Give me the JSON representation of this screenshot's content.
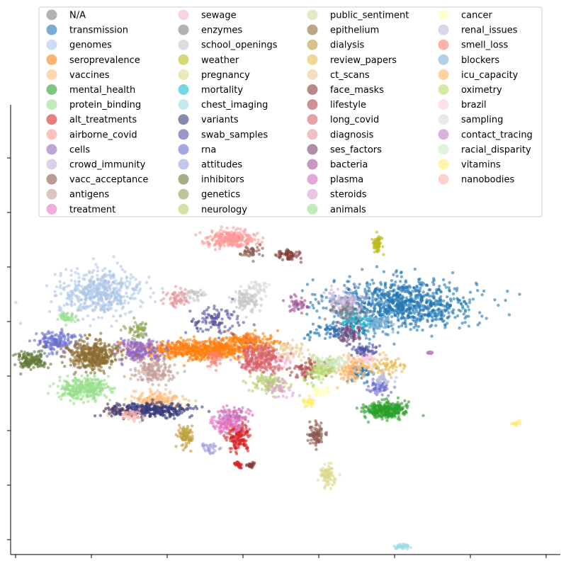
{
  "chart_data": {
    "type": "scatter",
    "title": "",
    "xlabel": "",
    "ylabel": "",
    "x_tick_labels_visible": false,
    "y_tick_labels_visible": false,
    "grid": false,
    "legend_position": "top",
    "legend_columns": 4,
    "marker_alpha": 0.6,
    "series": [
      {
        "name": "N/A",
        "color": "#7f7f7f",
        "clusters": []
      },
      {
        "name": "transmission",
        "color": "#1f77b4",
        "clusters": [
          [
            5.6,
            4.7,
            1.8,
            0.9,
            900
          ],
          [
            4.1,
            3.7,
            0.8,
            0.4,
            120
          ],
          [
            4.6,
            2.2,
            0.3,
            0.3,
            60
          ]
        ]
      },
      {
        "name": "genomes",
        "color": "#aec7e8",
        "clusters": [
          [
            -1.8,
            5.1,
            1.0,
            0.8,
            500
          ]
        ]
      },
      {
        "name": "seroprevalence",
        "color": "#ff7f0e",
        "clusters": [
          [
            0.6,
            3.0,
            1.4,
            0.35,
            600
          ],
          [
            1.8,
            3.3,
            0.8,
            0.3,
            200
          ]
        ]
      },
      {
        "name": "vaccines",
        "color": "#ffbb78",
        "clusters": [
          [
            -0.4,
            1.2,
            0.6,
            0.3,
            150
          ],
          [
            4.5,
            2.5,
            0.6,
            0.4,
            120
          ],
          [
            -1.4,
            0.8,
            0.3,
            0.2,
            50
          ]
        ]
      },
      {
        "name": "mental_health",
        "color": "#2ca02c",
        "clusters": [
          [
            5.2,
            0.8,
            0.5,
            0.3,
            300
          ]
        ]
      },
      {
        "name": "protein_binding",
        "color": "#98df8a",
        "clusters": [
          [
            -2.2,
            1.6,
            0.6,
            0.4,
            300
          ]
        ]
      },
      {
        "name": "alt_treatments",
        "color": "#d62728",
        "clusters": [
          [
            1.6,
            -0.2,
            0.3,
            0.5,
            150
          ],
          [
            1.6,
            -1.2,
            0.1,
            0.1,
            30
          ]
        ]
      },
      {
        "name": "airborne_covid",
        "color": "#ff9896",
        "clusters": [
          [
            1.4,
            7.1,
            0.6,
            0.3,
            250
          ]
        ]
      },
      {
        "name": "cells",
        "color": "#9467bd",
        "clusters": [
          [
            -0.8,
            3.0,
            0.6,
            0.4,
            200
          ]
        ]
      },
      {
        "name": "crowd_immunity",
        "color": "#c5b0d5",
        "clusters": [
          [
            4.2,
            4.8,
            0.5,
            0.4,
            120
          ]
        ]
      },
      {
        "name": "vacc_acceptance",
        "color": "#8c564b",
        "clusters": [
          [
            3.5,
            -0.1,
            0.2,
            0.4,
            80
          ],
          [
            1.9,
            6.6,
            0.3,
            0.2,
            40
          ]
        ]
      },
      {
        "name": "antigens",
        "color": "#c49c94",
        "clusters": [
          [
            -0.5,
            2.2,
            0.5,
            0.4,
            150
          ]
        ]
      },
      {
        "name": "treatment",
        "color": "#e377c2",
        "clusters": [
          [
            1.3,
            0.3,
            0.4,
            0.3,
            100
          ]
        ]
      },
      {
        "name": "sewage",
        "color": "#f7b6d2",
        "clusters": [
          [
            2.6,
            2.7,
            0.3,
            0.3,
            40
          ]
        ]
      },
      {
        "name": "enzymes",
        "color": "#7f7f7f",
        "clusters": [
          [
            4.3,
            4.4,
            0.5,
            0.3,
            60
          ]
        ]
      },
      {
        "name": "school_openings",
        "color": "#c7c7c7",
        "clusters": [
          [
            1.8,
            4.8,
            0.3,
            0.4,
            100
          ],
          [
            0.5,
            5.0,
            0.3,
            0.2,
            40
          ]
        ]
      },
      {
        "name": "weather",
        "color": "#bcbd22",
        "clusters": [
          [
            5.0,
            6.9,
            0.1,
            0.3,
            80
          ]
        ]
      },
      {
        "name": "pregnancy",
        "color": "#dbdb8d",
        "clusters": [
          [
            3.8,
            -1.6,
            0.2,
            0.4,
            80
          ]
        ]
      },
      {
        "name": "mortality",
        "color": "#17becf",
        "clusters": [
          [
            4.6,
            4.0,
            0.4,
            0.3,
            60
          ]
        ]
      },
      {
        "name": "chest_imaging",
        "color": "#9edae5",
        "clusters": [
          [
            5.6,
            -4.2,
            0.2,
            0.1,
            40
          ]
        ]
      },
      {
        "name": "variants",
        "color": "#393b79",
        "clusters": [
          [
            -0.6,
            0.8,
            1.0,
            0.25,
            350
          ]
        ]
      },
      {
        "name": "swab_samples",
        "color": "#5254a3",
        "clusters": [
          [
            1.0,
            4.1,
            0.7,
            0.5,
            100
          ],
          [
            4.7,
            3.0,
            0.3,
            0.3,
            60
          ]
        ]
      },
      {
        "name": "rna",
        "color": "#6b6ecf",
        "clusters": [
          [
            -2.9,
            3.3,
            0.5,
            0.4,
            150
          ],
          [
            5.0,
            1.6,
            0.3,
            0.3,
            60
          ]
        ]
      },
      {
        "name": "attitudes",
        "color": "#9c9ede",
        "clusters": [
          [
            0.9,
            -0.6,
            0.2,
            0.2,
            30
          ]
        ]
      },
      {
        "name": "inhibitors",
        "color": "#637939",
        "clusters": [
          [
            -3.5,
            2.6,
            0.4,
            0.3,
            150
          ]
        ]
      },
      {
        "name": "genetics",
        "color": "#8ca252",
        "clusters": [
          [
            -0.9,
            3.7,
            0.3,
            0.3,
            50
          ]
        ]
      },
      {
        "name": "neurology",
        "color": "#b5cf6b",
        "clusters": [
          [
            2.3,
            1.8,
            0.4,
            0.4,
            100
          ],
          [
            3.8,
            2.4,
            0.3,
            0.3,
            60
          ]
        ]
      },
      {
        "name": "public_sentiment",
        "color": "#cedb9c",
        "clusters": [
          [
            3.5,
            2.5,
            0.3,
            0.3,
            60
          ]
        ]
      },
      {
        "name": "epithelium",
        "color": "#8c6d31",
        "clusters": [
          [
            -2.0,
            2.8,
            0.6,
            0.5,
            400
          ]
        ]
      },
      {
        "name": "dialysis",
        "color": "#bd9e39",
        "clusters": [
          [
            0.3,
            -0.2,
            0.2,
            0.4,
            80
          ]
        ]
      },
      {
        "name": "review_papers",
        "color": "#e7ba52",
        "clusters": [
          [
            5.3,
            2.4,
            0.4,
            0.3,
            60
          ]
        ]
      },
      {
        "name": "ct_scans",
        "color": "#e7cb94",
        "clusters": [
          [
            2.9,
            3.0,
            0.4,
            0.3,
            50
          ]
        ]
      },
      {
        "name": "face_masks",
        "color": "#843c39",
        "clusters": [
          [
            2.8,
            6.5,
            0.3,
            0.2,
            60
          ],
          [
            1.9,
            -1.2,
            0.1,
            0.1,
            30
          ]
        ]
      },
      {
        "name": "lifestyle",
        "color": "#ad494a",
        "clusters": [
          [
            3.2,
            2.3,
            0.4,
            0.3,
            60
          ]
        ]
      },
      {
        "name": "long_covid",
        "color": "#d6616b",
        "clusters": [
          [
            2.1,
            2.7,
            0.5,
            0.5,
            250
          ]
        ]
      },
      {
        "name": "diagnosis",
        "color": "#e7969c",
        "clusters": [
          [
            0.1,
            4.9,
            0.3,
            0.3,
            60
          ]
        ]
      },
      {
        "name": "ses_factors",
        "color": "#7b4173",
        "clusters": [
          [
            4.3,
            3.6,
            0.3,
            0.4,
            60
          ]
        ]
      },
      {
        "name": "bacteria",
        "color": "#a55194",
        "clusters": [
          [
            3.0,
            4.7,
            0.3,
            0.3,
            40
          ]
        ]
      },
      {
        "name": "plasma",
        "color": "#ce6dbd",
        "clusters": [
          [
            1.5,
            0.6,
            0.4,
            0.3,
            80
          ]
        ]
      },
      {
        "name": "steroids",
        "color": "#de9ed6",
        "clusters": [
          [
            2.6,
            1.6,
            0.3,
            0.3,
            40
          ]
        ]
      },
      {
        "name": "animals",
        "color": "#98df8a",
        "clusters": [
          [
            -2.6,
            4.2,
            0.2,
            0.2,
            40
          ]
        ]
      },
      {
        "name": "cancer",
        "color": "#ffffb2",
        "clusters": [
          [
            3.6,
            1.5,
            0.2,
            0.2,
            30
          ]
        ]
      },
      {
        "name": "renal_issues",
        "color": "#bcbddc",
        "clusters": [
          [
            5.1,
            1.9,
            0.3,
            0.3,
            40
          ]
        ]
      },
      {
        "name": "smell_loss",
        "color": "#fb8072",
        "clusters": [
          [
            1.0,
            2.7,
            0.3,
            0.3,
            40
          ]
        ]
      },
      {
        "name": "blockers",
        "color": "#80b1d3",
        "clusters": [
          [
            5.0,
            4.0,
            0.4,
            0.3,
            60
          ]
        ]
      },
      {
        "name": "icu_capacity",
        "color": "#fdb462",
        "clusters": [
          [
            4.3,
            2.1,
            0.3,
            0.3,
            40
          ]
        ]
      },
      {
        "name": "oximetry",
        "color": "#b3de69",
        "clusters": [
          [
            3.5,
            2.1,
            0.3,
            0.3,
            40
          ]
        ]
      },
      {
        "name": "brazil",
        "color": "#fccde5",
        "clusters": [
          [
            4.8,
            2.7,
            0.2,
            0.2,
            20
          ]
        ]
      },
      {
        "name": "sampling",
        "color": "#d9d9d9",
        "clusters": [
          [
            2.1,
            5.2,
            0.3,
            0.3,
            40
          ]
        ]
      },
      {
        "name": "contact_tracing",
        "color": "#bc80bd",
        "clusters": [
          [
            6.3,
            2.9,
            0.1,
            0.05,
            20
          ]
        ]
      },
      {
        "name": "racial_disparity",
        "color": "#ccebc5",
        "clusters": [
          [
            3.9,
            2.5,
            0.3,
            0.3,
            40
          ]
        ]
      },
      {
        "name": "vitamins",
        "color": "#ffed6f",
        "clusters": [
          [
            8.4,
            0.3,
            0.1,
            0.1,
            20
          ],
          [
            3.3,
            1.1,
            0.2,
            0.2,
            30
          ]
        ]
      },
      {
        "name": "nanobodies",
        "color": "#fbb4ae",
        "clusters": [
          [
            -1.0,
            0.6,
            0.3,
            0.2,
            40
          ]
        ]
      }
    ],
    "xlim": [
      -4,
      9.5
    ],
    "ylim": [
      -4.5,
      12
    ]
  }
}
